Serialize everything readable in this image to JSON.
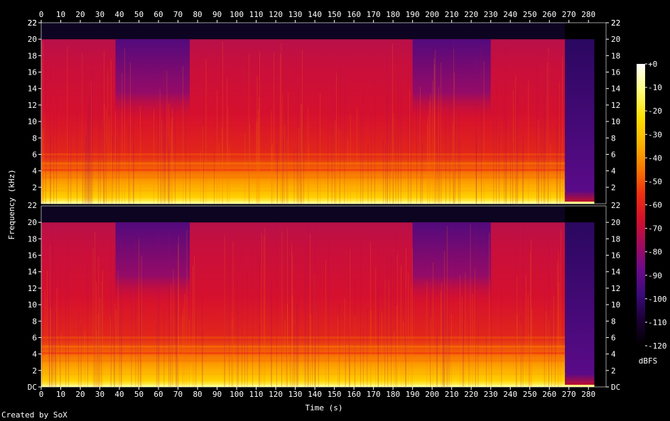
{
  "chart_data": {
    "type": "heatmap",
    "xlabel": "Time (s)",
    "ylabel": "Frequency (kHz)",
    "x_ticks": [
      0,
      10,
      20,
      30,
      40,
      50,
      60,
      70,
      80,
      90,
      100,
      110,
      120,
      130,
      140,
      150,
      160,
      170,
      180,
      190,
      200,
      210,
      220,
      230,
      240,
      250,
      260,
      270,
      280
    ],
    "xlim": [
      0,
      289
    ],
    "y_ticks_top": [
      "2",
      "4",
      "6",
      "8",
      "10",
      "12",
      "14",
      "16",
      "18",
      "20",
      "22"
    ],
    "y_ticks_bottom": [
      "DC",
      "2",
      "4",
      "6",
      "8",
      "10",
      "12",
      "14",
      "16",
      "18",
      "20"
    ],
    "ylim": [
      0,
      22
    ],
    "channels": 2,
    "colorbar": {
      "label": "dBFS",
      "ticks": [
        "+0",
        "-10",
        "-20",
        "-30",
        "-40",
        "-50",
        "-60",
        "-70",
        "-80",
        "-90",
        "-100",
        "-110",
        "-120"
      ],
      "range": [
        -120,
        0
      ]
    },
    "content_end_s": 268,
    "fade_end_s": 283,
    "cutoff_khz": 20,
    "quiet_high_band_sections_s": [
      [
        38,
        76
      ],
      [
        190,
        230
      ]
    ]
  },
  "credit": "Created by SoX",
  "colors": {
    "background": "#000000",
    "colormap": [
      "#000000",
      "#1a0033",
      "#3b0a7a",
      "#6b0a8c",
      "#a30a5c",
      "#d4102a",
      "#f03010",
      "#f87a00",
      "#fcb400",
      "#ffe000",
      "#ffff80",
      "#ffffff"
    ]
  }
}
